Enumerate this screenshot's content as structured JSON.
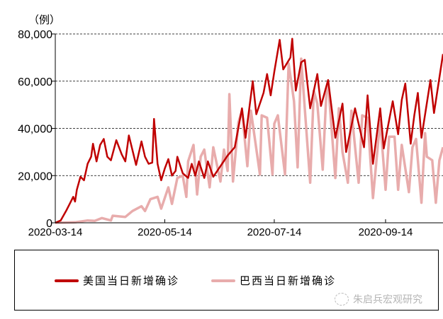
{
  "chart_data": {
    "type": "line",
    "unit_label": "（例）",
    "ylim": [
      0,
      80000
    ],
    "yticks": [
      0,
      20000,
      40000,
      60000,
      80000
    ],
    "ytick_labels": [
      "0",
      "20,000",
      "40,000",
      "60,000",
      "80,000"
    ],
    "xlim": [
      "2020-03-14",
      "2020-10-16"
    ],
    "xticks": [
      "2020-03-14",
      "2020-05-14",
      "2020-07-14",
      "2020-09-14"
    ],
    "grid": "horizontal dashed",
    "legend_placement": "bottom",
    "series": [
      {
        "name": "美国当日新增确诊",
        "color": "#c00000",
        "points": [
          [
            "2020-03-14",
            0
          ],
          [
            "2020-03-17",
            1000
          ],
          [
            "2020-03-20",
            5000
          ],
          [
            "2020-03-22",
            8000
          ],
          [
            "2020-03-24",
            11000
          ],
          [
            "2020-03-25",
            9000
          ],
          [
            "2020-03-26",
            14000
          ],
          [
            "2020-03-28",
            19500
          ],
          [
            "2020-03-30",
            18000
          ],
          [
            "2020-04-01",
            25000
          ],
          [
            "2020-04-03",
            28000
          ],
          [
            "2020-04-04",
            33500
          ],
          [
            "2020-04-06",
            26000
          ],
          [
            "2020-04-08",
            33000
          ],
          [
            "2020-04-10",
            35500
          ],
          [
            "2020-04-12",
            28000
          ],
          [
            "2020-04-14",
            26500
          ],
          [
            "2020-04-17",
            35000
          ],
          [
            "2020-04-20",
            29000
          ],
          [
            "2020-04-22",
            26000
          ],
          [
            "2020-04-24",
            37000
          ],
          [
            "2020-04-28",
            24500
          ],
          [
            "2020-05-01",
            34500
          ],
          [
            "2020-05-03",
            28000
          ],
          [
            "2020-05-05",
            25000
          ],
          [
            "2020-05-07",
            25500
          ],
          [
            "2020-05-08",
            44000
          ],
          [
            "2020-05-10",
            25000
          ],
          [
            "2020-05-12",
            18000
          ],
          [
            "2020-05-14",
            23000
          ],
          [
            "2020-05-16",
            27000
          ],
          [
            "2020-05-18",
            20000
          ],
          [
            "2020-05-20",
            22000
          ],
          [
            "2020-05-21",
            28000
          ],
          [
            "2020-05-24",
            21000
          ],
          [
            "2020-05-27",
            19000
          ],
          [
            "2020-05-29",
            25000
          ],
          [
            "2020-05-31",
            20000
          ],
          [
            "2020-06-02",
            26000
          ],
          [
            "2020-06-05",
            19000
          ],
          [
            "2020-06-07",
            26000
          ],
          [
            "2020-06-10",
            19500
          ],
          [
            "2020-06-14",
            24000
          ],
          [
            "2020-06-18",
            28500
          ],
          [
            "2020-06-22",
            32000
          ],
          [
            "2020-06-26",
            48500
          ],
          [
            "2020-06-28",
            36000
          ],
          [
            "2020-07-02",
            60000
          ],
          [
            "2020-07-04",
            46000
          ],
          [
            "2020-07-08",
            55000
          ],
          [
            "2020-07-10",
            63000
          ],
          [
            "2020-07-12",
            54000
          ],
          [
            "2020-07-14",
            64000
          ],
          [
            "2020-07-17",
            77500
          ],
          [
            "2020-07-19",
            65000
          ],
          [
            "2020-07-23",
            70000
          ],
          [
            "2020-07-24",
            78000
          ],
          [
            "2020-07-26",
            56000
          ],
          [
            "2020-07-29",
            68000
          ],
          [
            "2020-07-31",
            69000
          ],
          [
            "2020-08-03",
            48500
          ],
          [
            "2020-08-07",
            63000
          ],
          [
            "2020-08-09",
            49500
          ],
          [
            "2020-08-13",
            60500
          ],
          [
            "2020-08-17",
            36000
          ],
          [
            "2020-08-21",
            50500
          ],
          [
            "2020-08-23",
            30000
          ],
          [
            "2020-08-28",
            48500
          ],
          [
            "2020-09-02",
            32000
          ],
          [
            "2020-09-04",
            54000
          ],
          [
            "2020-09-07",
            25000
          ],
          [
            "2020-09-11",
            48500
          ],
          [
            "2020-09-13",
            31500
          ],
          [
            "2020-09-18",
            51500
          ],
          [
            "2020-09-21",
            37500
          ],
          [
            "2020-09-23",
            52000
          ],
          [
            "2020-09-25",
            59000
          ],
          [
            "2020-09-28",
            33500
          ],
          [
            "2020-09-30",
            45500
          ],
          [
            "2020-10-02",
            55000
          ],
          [
            "2020-10-04",
            36000
          ],
          [
            "2020-10-09",
            60500
          ],
          [
            "2020-10-11",
            46500
          ],
          [
            "2020-10-16",
            71500
          ]
        ]
      },
      {
        "name": "巴西当日新增确诊",
        "color": "#e8acac",
        "points": [
          [
            "2020-03-14",
            0
          ],
          [
            "2020-03-25",
            200
          ],
          [
            "2020-04-01",
            1000
          ],
          [
            "2020-04-05",
            800
          ],
          [
            "2020-04-09",
            2000
          ],
          [
            "2020-04-14",
            1000
          ],
          [
            "2020-04-15",
            3000
          ],
          [
            "2020-04-22",
            2500
          ],
          [
            "2020-04-26",
            5000
          ],
          [
            "2020-05-01",
            7000
          ],
          [
            "2020-05-03",
            5000
          ],
          [
            "2020-05-06",
            10000
          ],
          [
            "2020-05-10",
            11000
          ],
          [
            "2020-05-12",
            6000
          ],
          [
            "2020-05-16",
            15000
          ],
          [
            "2020-05-18",
            8000
          ],
          [
            "2020-05-21",
            19000
          ],
          [
            "2020-05-24",
            20000
          ],
          [
            "2020-05-26",
            11000
          ],
          [
            "2020-05-27",
            26000
          ],
          [
            "2020-05-30",
            33000
          ],
          [
            "2020-06-01",
            12000
          ],
          [
            "2020-06-03",
            28000
          ],
          [
            "2020-06-05",
            31000
          ],
          [
            "2020-06-08",
            15000
          ],
          [
            "2020-06-10",
            32000
          ],
          [
            "2020-06-14",
            17500
          ],
          [
            "2020-06-16",
            31000
          ],
          [
            "2020-06-18",
            22000
          ],
          [
            "2020-06-19",
            54500
          ],
          [
            "2020-06-21",
            17500
          ],
          [
            "2020-06-24",
            42500
          ],
          [
            "2020-06-26",
            47500
          ],
          [
            "2020-06-29",
            24000
          ],
          [
            "2020-07-01",
            47500
          ],
          [
            "2020-07-06",
            20500
          ],
          [
            "2020-07-07",
            45500
          ],
          [
            "2020-07-10",
            44500
          ],
          [
            "2020-07-13",
            20500
          ],
          [
            "2020-07-14",
            42000
          ],
          [
            "2020-07-16",
            45500
          ],
          [
            "2020-07-20",
            20500
          ],
          [
            "2020-07-22",
            67500
          ],
          [
            "2020-07-25",
            51500
          ],
          [
            "2020-07-27",
            23500
          ],
          [
            "2020-07-29",
            69500
          ],
          [
            "2020-08-03",
            17000
          ],
          [
            "2020-08-05",
            56000
          ],
          [
            "2020-08-07",
            50500
          ],
          [
            "2020-08-10",
            22500
          ],
          [
            "2020-08-12",
            54500
          ],
          [
            "2020-08-13",
            59500
          ],
          [
            "2020-08-17",
            19000
          ],
          [
            "2020-08-19",
            48500
          ],
          [
            "2020-08-21",
            30000
          ],
          [
            "2020-08-24",
            17000
          ],
          [
            "2020-08-26",
            47500
          ],
          [
            "2020-08-30",
            17000
          ],
          [
            "2020-09-01",
            45500
          ],
          [
            "2020-09-04",
            44500
          ],
          [
            "2020-09-07",
            10500
          ],
          [
            "2020-09-11",
            43500
          ],
          [
            "2020-09-14",
            14000
          ],
          [
            "2020-09-16",
            36500
          ],
          [
            "2020-09-19",
            36500
          ],
          [
            "2020-09-21",
            14000
          ],
          [
            "2020-09-23",
            33000
          ],
          [
            "2020-09-27",
            13000
          ],
          [
            "2020-09-29",
            32000
          ],
          [
            "2020-10-01",
            35500
          ],
          [
            "2020-10-04",
            8500
          ],
          [
            "2020-10-06",
            38000
          ],
          [
            "2020-10-07",
            28000
          ],
          [
            "2020-10-10",
            26500
          ],
          [
            "2020-10-12",
            8500
          ],
          [
            "2020-10-14",
            26500
          ],
          [
            "2020-10-16",
            32000
          ]
        ]
      }
    ]
  },
  "watermark": "朱启兵宏观研究"
}
